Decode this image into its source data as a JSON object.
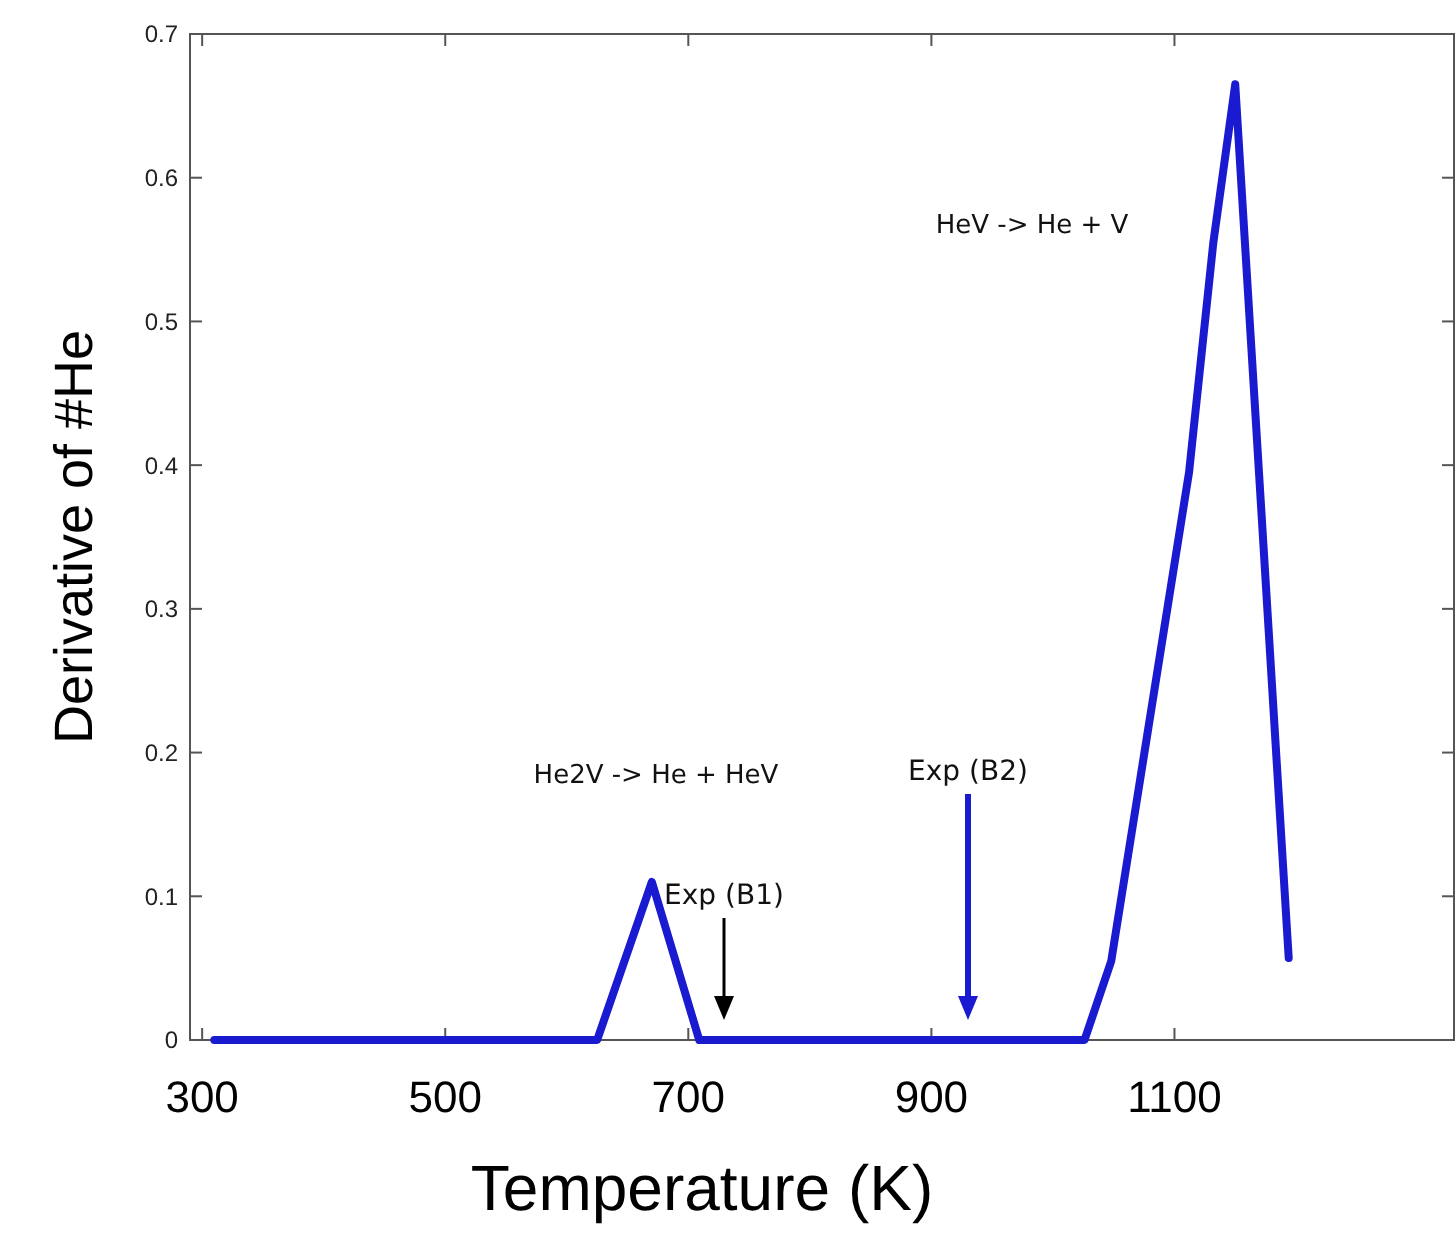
{
  "chart_data": {
    "type": "line",
    "xlabel": "Temperature (K)",
    "ylabel": "Derivative of #He",
    "xlim": [
      290,
      1330
    ],
    "xticks": [
      300,
      500,
      700,
      900,
      1100
    ],
    "ylim": [
      0,
      0.7
    ],
    "yticks": [
      {
        "value": 0,
        "label": "0"
      },
      0.1,
      0.2,
      0.3,
      0.4,
      0.5,
      0.6,
      0.7
    ],
    "grid": false,
    "marker": "none",
    "line_style": "solid",
    "series": [
      {
        "color": "#1a1ad0",
        "x": [
          310,
          625,
          670,
          709,
          1026,
          1048,
          1112,
          1132,
          1150,
          1194
        ],
        "values": [
          0,
          0,
          0.11,
          0,
          0,
          0.055,
          0.395,
          0.555,
          0.665,
          0.057
        ]
      }
    ],
    "annotations": [
      "He2V -> He + HeV",
      "HeV -> He + V",
      "Exp (B1)",
      "Exp (B2)"
    ]
  }
}
